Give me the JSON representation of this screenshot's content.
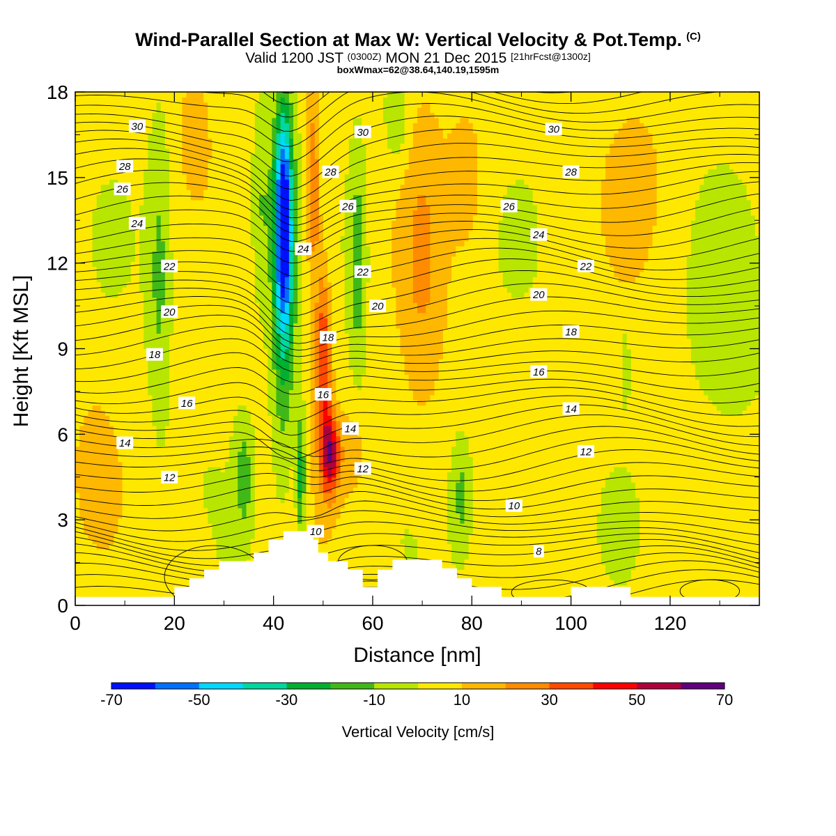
{
  "header": {
    "title": "Wind-Parallel Section at Max W: Vertical Velocity & Pot.Temp.",
    "copyright": "(C)",
    "valid_prefix": "Valid 1200 JST",
    "valid_utc": "(0300Z)",
    "valid_date": "MON 21 Dec 2015",
    "forecast": "[21hrFcst@1300z]",
    "box_info": "boxWmax=62@38.64,140.19,1595m"
  },
  "chart_data": {
    "type": "heatmap",
    "title": "Wind-Parallel Section at Max W: Vertical Velocity & Pot.Temp.",
    "xlabel": "Distance [nm]",
    "ylabel": "Height [Kft MSL]",
    "xlim": [
      0,
      138
    ],
    "ylim": [
      0,
      18
    ],
    "xticks": [
      0,
      20,
      40,
      60,
      80,
      100,
      120
    ],
    "yticks": [
      0,
      3,
      6,
      9,
      12,
      15,
      18
    ],
    "colorbar": {
      "label": "Vertical Velocity [cm/s]",
      "levels": [
        -70,
        -60,
        -50,
        -40,
        -30,
        -20,
        -10,
        0,
        10,
        20,
        30,
        40,
        50,
        60,
        70
      ],
      "tick_labels": [
        "-70",
        "-50",
        "-30",
        "-10",
        "10",
        "30",
        "50",
        "70"
      ],
      "colors": [
        "#0010ff",
        "#0070ff",
        "#00d8ff",
        "#00d8a0",
        "#00b030",
        "#40b818",
        "#b8e600",
        "#ffe800",
        "#ffb800",
        "#ff8c00",
        "#ff4a00",
        "#ff0000",
        "#b0003c",
        "#60007c"
      ]
    },
    "theta_contour_labels": [
      {
        "text": "30",
        "x": 12.5,
        "y": 16.8
      },
      {
        "text": "28",
        "x": 10,
        "y": 15.4
      },
      {
        "text": "26",
        "x": 9.5,
        "y": 14.6
      },
      {
        "text": "24",
        "x": 12.5,
        "y": 13.4
      },
      {
        "text": "22",
        "x": 19,
        "y": 11.9
      },
      {
        "text": "20",
        "x": 19,
        "y": 10.3
      },
      {
        "text": "18",
        "x": 16,
        "y": 8.8
      },
      {
        "text": "16",
        "x": 22.5,
        "y": 7.1
      },
      {
        "text": "14",
        "x": 10,
        "y": 5.7
      },
      {
        "text": "12",
        "x": 19,
        "y": 4.5
      },
      {
        "text": "30",
        "x": 58,
        "y": 16.6
      },
      {
        "text": "28",
        "x": 51.5,
        "y": 15.2
      },
      {
        "text": "26",
        "x": 55,
        "y": 14.0
      },
      {
        "text": "24",
        "x": 46,
        "y": 12.5
      },
      {
        "text": "22",
        "x": 58,
        "y": 11.7
      },
      {
        "text": "20",
        "x": 61,
        "y": 10.5
      },
      {
        "text": "18",
        "x": 51,
        "y": 9.4
      },
      {
        "text": "16",
        "x": 50,
        "y": 7.4
      },
      {
        "text": "14",
        "x": 55.5,
        "y": 6.2
      },
      {
        "text": "12",
        "x": 58,
        "y": 4.8
      },
      {
        "text": "10",
        "x": 48.5,
        "y": 2.6
      },
      {
        "text": "30",
        "x": 96.5,
        "y": 16.7
      },
      {
        "text": "28",
        "x": 100,
        "y": 15.2
      },
      {
        "text": "26",
        "x": 87.5,
        "y": 14.0
      },
      {
        "text": "24",
        "x": 93.5,
        "y": 13.0
      },
      {
        "text": "22",
        "x": 103,
        "y": 11.9
      },
      {
        "text": "20",
        "x": 93.5,
        "y": 10.9
      },
      {
        "text": "18",
        "x": 100,
        "y": 9.6
      },
      {
        "text": "16",
        "x": 93.5,
        "y": 8.2
      },
      {
        "text": "14",
        "x": 100,
        "y": 6.9
      },
      {
        "text": "12",
        "x": 103,
        "y": 5.4
      },
      {
        "text": "10",
        "x": 88.5,
        "y": 3.5
      },
      {
        "text": "8",
        "x": 93.5,
        "y": 1.9
      }
    ],
    "terrain": [
      [
        0,
        0.3
      ],
      [
        20,
        0.3
      ],
      [
        20,
        0.65
      ],
      [
        23,
        0.65
      ],
      [
        23,
        0.95
      ],
      [
        26,
        0.95
      ],
      [
        26,
        1.25
      ],
      [
        29,
        1.25
      ],
      [
        29,
        1.55
      ],
      [
        36,
        1.55
      ],
      [
        36,
        1.85
      ],
      [
        39,
        1.85
      ],
      [
        39,
        2.3
      ],
      [
        42,
        2.3
      ],
      [
        42,
        2.6
      ],
      [
        48,
        2.6
      ],
      [
        48,
        2.3
      ],
      [
        49,
        2.3
      ],
      [
        49,
        1.85
      ],
      [
        51,
        1.85
      ],
      [
        51,
        1.55
      ],
      [
        55,
        1.55
      ],
      [
        55,
        1.25
      ],
      [
        58,
        1.25
      ],
      [
        58,
        0.65
      ],
      [
        61,
        0.65
      ],
      [
        61,
        1.25
      ],
      [
        64,
        1.25
      ],
      [
        64,
        1.6
      ],
      [
        74,
        1.6
      ],
      [
        74,
        1.3
      ],
      [
        77,
        1.3
      ],
      [
        77,
        0.95
      ],
      [
        80,
        0.95
      ],
      [
        80,
        0.65
      ],
      [
        86,
        0.65
      ],
      [
        86,
        0.3
      ],
      [
        100,
        0.3
      ],
      [
        100,
        0.65
      ],
      [
        112,
        0.65
      ],
      [
        112,
        0.3
      ],
      [
        138,
        0.3
      ]
    ]
  }
}
